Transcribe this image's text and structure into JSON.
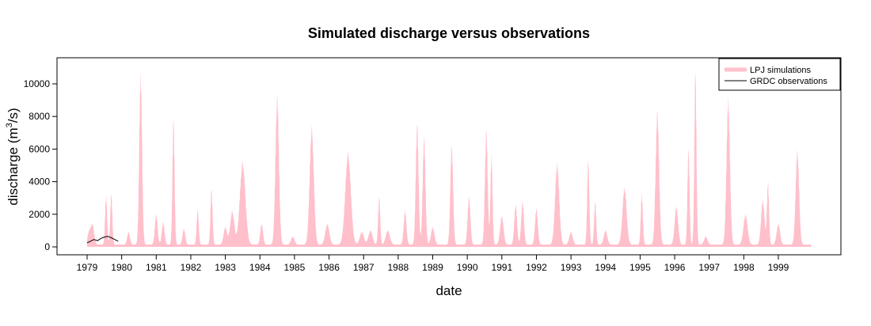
{
  "chart_data": {
    "type": "area",
    "title": "Simulated discharge versus observations",
    "xlabel": "date",
    "ylabel": "discharge (m",
    "ylabel_sup": "3",
    "ylabel_suffix": "/s)",
    "xlim": [
      1979,
      2000
    ],
    "ylim": [
      0,
      11000
    ],
    "x_ticks": [
      "1979",
      "1980",
      "1981",
      "1982",
      "1983",
      "1984",
      "1985",
      "1986",
      "1987",
      "1988",
      "1989",
      "1990",
      "1991",
      "1992",
      "1993",
      "1994",
      "1995",
      "1996",
      "1997",
      "1998",
      "1999"
    ],
    "y_ticks": [
      0,
      2000,
      4000,
      6000,
      8000,
      10000
    ],
    "legend": {
      "position": "top-right",
      "entries": [
        {
          "label": "LPJ simulations",
          "color": "#ffc0cb",
          "style": "thick-line"
        },
        {
          "label": "GRDC observations",
          "color": "#000000",
          "style": "line"
        }
      ]
    },
    "grid": false,
    "series": [
      {
        "name": "LPJ simulations",
        "color": "#ffc0cb",
        "peaks": [
          {
            "year": 1979.05,
            "value": 700,
            "sd": 0.04
          },
          {
            "year": 1979.15,
            "value": 1300,
            "sd": 0.05
          },
          {
            "year": 1979.55,
            "value": 3000,
            "sd": 0.03
          },
          {
            "year": 1979.7,
            "value": 3200,
            "sd": 0.03
          },
          {
            "year": 1980.2,
            "value": 800,
            "sd": 0.04
          },
          {
            "year": 1980.55,
            "value": 10800,
            "sd": 0.04
          },
          {
            "year": 1981.0,
            "value": 1900,
            "sd": 0.04
          },
          {
            "year": 1981.2,
            "value": 1400,
            "sd": 0.04
          },
          {
            "year": 1981.5,
            "value": 8000,
            "sd": 0.03
          },
          {
            "year": 1981.8,
            "value": 1000,
            "sd": 0.04
          },
          {
            "year": 1982.2,
            "value": 2200,
            "sd": 0.03
          },
          {
            "year": 1982.6,
            "value": 3500,
            "sd": 0.03
          },
          {
            "year": 1983.0,
            "value": 1100,
            "sd": 0.05
          },
          {
            "year": 1983.2,
            "value": 2100,
            "sd": 0.06
          },
          {
            "year": 1983.5,
            "value": 5200,
            "sd": 0.08
          },
          {
            "year": 1984.05,
            "value": 1300,
            "sd": 0.04
          },
          {
            "year": 1984.5,
            "value": 9400,
            "sd": 0.05
          },
          {
            "year": 1984.95,
            "value": 500,
            "sd": 0.05
          },
          {
            "year": 1985.5,
            "value": 7400,
            "sd": 0.06
          },
          {
            "year": 1985.95,
            "value": 1300,
            "sd": 0.06
          },
          {
            "year": 1986.55,
            "value": 5800,
            "sd": 0.08
          },
          {
            "year": 1986.95,
            "value": 800,
            "sd": 0.06
          },
          {
            "year": 1987.2,
            "value": 900,
            "sd": 0.06
          },
          {
            "year": 1987.45,
            "value": 3000,
            "sd": 0.03
          },
          {
            "year": 1987.7,
            "value": 900,
            "sd": 0.06
          },
          {
            "year": 1988.2,
            "value": 2100,
            "sd": 0.04
          },
          {
            "year": 1988.55,
            "value": 7600,
            "sd": 0.04
          },
          {
            "year": 1988.75,
            "value": 6800,
            "sd": 0.04
          },
          {
            "year": 1989.0,
            "value": 1100,
            "sd": 0.05
          },
          {
            "year": 1989.55,
            "value": 6300,
            "sd": 0.04
          },
          {
            "year": 1990.05,
            "value": 3000,
            "sd": 0.04
          },
          {
            "year": 1990.55,
            "value": 7200,
            "sd": 0.04
          },
          {
            "year": 1990.7,
            "value": 5600,
            "sd": 0.03
          },
          {
            "year": 1991.0,
            "value": 1800,
            "sd": 0.05
          },
          {
            "year": 1991.4,
            "value": 2500,
            "sd": 0.04
          },
          {
            "year": 1991.6,
            "value": 2700,
            "sd": 0.04
          },
          {
            "year": 1992.0,
            "value": 2300,
            "sd": 0.04
          },
          {
            "year": 1992.6,
            "value": 5100,
            "sd": 0.06
          },
          {
            "year": 1993.0,
            "value": 800,
            "sd": 0.05
          },
          {
            "year": 1993.5,
            "value": 5400,
            "sd": 0.03
          },
          {
            "year": 1993.7,
            "value": 2700,
            "sd": 0.03
          },
          {
            "year": 1994.0,
            "value": 900,
            "sd": 0.05
          },
          {
            "year": 1994.55,
            "value": 3600,
            "sd": 0.06
          },
          {
            "year": 1995.05,
            "value": 3200,
            "sd": 0.03
          },
          {
            "year": 1995.5,
            "value": 8400,
            "sd": 0.05
          },
          {
            "year": 1996.05,
            "value": 2400,
            "sd": 0.05
          },
          {
            "year": 1996.4,
            "value": 6100,
            "sd": 0.03
          },
          {
            "year": 1996.6,
            "value": 11000,
            "sd": 0.03
          },
          {
            "year": 1996.9,
            "value": 500,
            "sd": 0.05
          },
          {
            "year": 1997.55,
            "value": 9100,
            "sd": 0.05
          },
          {
            "year": 1998.05,
            "value": 1900,
            "sd": 0.06
          },
          {
            "year": 1998.55,
            "value": 2800,
            "sd": 0.05
          },
          {
            "year": 1998.7,
            "value": 3900,
            "sd": 0.03
          },
          {
            "year": 1999.0,
            "value": 1300,
            "sd": 0.05
          },
          {
            "year": 1999.55,
            "value": 5900,
            "sd": 0.05
          }
        ],
        "baseline": 150
      },
      {
        "name": "GRDC observations",
        "color": "#000000",
        "x": [
          1979.0,
          1979.1,
          1979.2,
          1979.3,
          1979.4,
          1979.5,
          1979.6,
          1979.7,
          1979.8,
          1979.9
        ],
        "values": [
          250,
          350,
          450,
          380,
          520,
          600,
          650,
          560,
          450,
          350
        ]
      }
    ]
  }
}
